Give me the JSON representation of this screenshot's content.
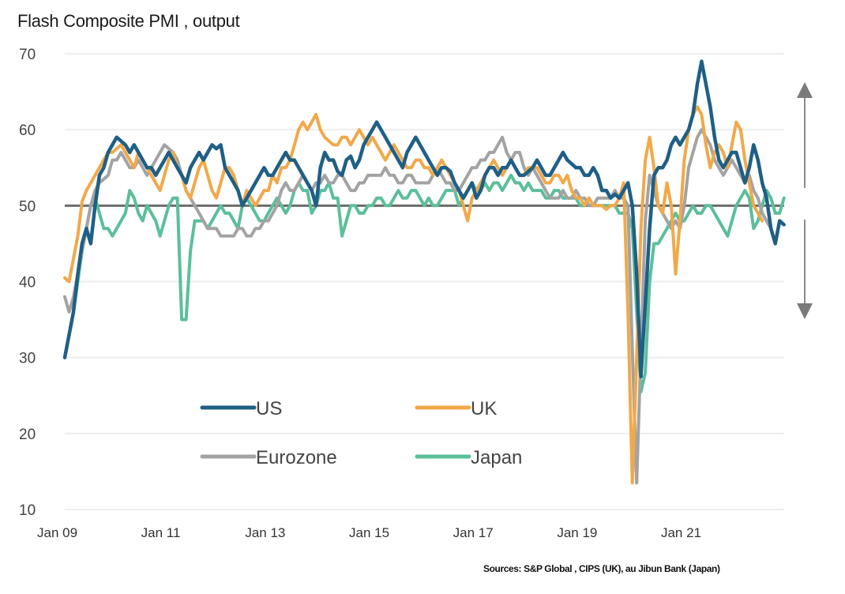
{
  "chart_data": {
    "type": "line",
    "title": "Flash Composite PMI , output",
    "source": "Sources: S&P Global , CIPS (UK), au Jibun Bank (Japan)",
    "xlabel": "",
    "ylabel": "",
    "ylim": [
      10,
      70
    ],
    "yticks": [
      10,
      20,
      30,
      40,
      50,
      60,
      70
    ],
    "xticks": [
      "Jan 09",
      "Jan 11",
      "Jan 13",
      "Jan 15",
      "Jan 17",
      "Jan 19",
      "Jan 21"
    ],
    "x_start": "Jan 09",
    "x_frequency": "monthly",
    "reference_line": 50,
    "grid": true,
    "legend_position": "lower-center",
    "annotation": "double-headed vertical arrow (expansion / contraction) at right",
    "series": [
      {
        "name": "US",
        "color": "#1f5f86",
        "values": [
          30,
          33,
          36,
          41,
          45,
          47,
          45,
          50,
          54,
          55,
          57,
          58,
          59,
          58.5,
          58,
          57,
          58,
          57,
          56,
          55,
          55,
          54,
          55,
          56,
          57,
          56,
          55,
          54,
          53,
          55,
          56,
          57,
          56,
          57,
          58,
          57.5,
          58,
          55,
          54,
          53,
          52,
          50,
          51,
          52,
          53,
          54,
          55,
          54,
          54,
          55,
          56,
          57,
          56,
          56,
          55,
          54,
          53,
          52,
          50,
          55,
          57,
          56,
          56,
          54.5,
          54,
          56,
          56.5,
          55,
          56,
          58,
          59,
          60,
          61,
          60,
          59,
          58,
          57,
          56,
          55,
          57,
          58,
          59,
          58,
          57,
          56,
          55,
          54,
          55,
          55,
          54.5,
          53,
          52,
          51,
          52,
          53,
          51,
          52,
          54,
          55,
          55,
          54,
          55,
          55,
          56,
          55,
          54,
          54,
          54.5,
          55,
          56,
          55,
          54,
          54,
          55,
          56,
          57,
          56,
          55.5,
          55,
          55,
          54,
          54,
          55,
          54,
          52,
          52,
          51,
          51.5,
          51,
          52,
          53,
          50,
          41,
          27.5,
          37,
          47,
          54,
          55,
          55,
          56,
          58,
          59,
          58,
          59,
          60,
          62,
          66,
          69,
          66,
          63,
          59,
          56,
          55,
          56,
          57,
          57,
          55,
          53,
          55,
          58,
          56,
          53,
          51,
          47,
          45,
          48,
          47.5
        ]
      },
      {
        "name": "UK",
        "color": "#f0a94a",
        "values": [
          40.5,
          40,
          43,
          46,
          50.5,
          52,
          53,
          54,
          55,
          56,
          57,
          57,
          57.5,
          58,
          57,
          56,
          55,
          57,
          56,
          55,
          54,
          53,
          52,
          54,
          56,
          57,
          55,
          54,
          52,
          51,
          53,
          55,
          56,
          54,
          52,
          51,
          53,
          55,
          55,
          54,
          52,
          50,
          52,
          51,
          50,
          51,
          52,
          52,
          54,
          53,
          55,
          55,
          56,
          58,
          60,
          61,
          60,
          61,
          62,
          60,
          59,
          58.5,
          58,
          58,
          59,
          59,
          58,
          59,
          60,
          59,
          58,
          59,
          58,
          57,
          56,
          57,
          58,
          57,
          56,
          55,
          55,
          56,
          56,
          55,
          55,
          54,
          55,
          56,
          55,
          54,
          53,
          52,
          50,
          48,
          51,
          52,
          53,
          54,
          55,
          56,
          55,
          54,
          55,
          56,
          55,
          54,
          54,
          55,
          55,
          55,
          54,
          53,
          53,
          54,
          54,
          53,
          54,
          52,
          51,
          51,
          50,
          51,
          50,
          50,
          50,
          49.5,
          50,
          50,
          51,
          53,
          36,
          13.5,
          30,
          47,
          56,
          59,
          55,
          50,
          49,
          53,
          50,
          41,
          48,
          56,
          60,
          62,
          63,
          62,
          58,
          55,
          57,
          58,
          57,
          55,
          58,
          61,
          60,
          56,
          53,
          50,
          49,
          48
        ]
      },
      {
        "name": "Eurozone",
        "color": "#a3a3a3",
        "values": [
          38,
          36,
          38,
          41,
          44,
          47,
          50,
          52,
          53,
          53.5,
          54,
          56,
          56,
          57,
          56,
          55,
          55,
          56,
          55,
          54,
          55,
          56,
          57,
          58,
          57.5,
          57,
          56,
          54,
          52,
          51,
          50,
          49,
          48,
          47,
          47,
          47,
          46,
          46,
          46,
          46,
          47,
          47,
          46,
          46,
          47,
          47,
          48,
          48,
          49,
          50,
          52,
          53,
          52,
          52,
          53,
          54,
          53,
          52,
          53,
          53,
          54,
          53,
          53,
          54,
          54,
          53,
          52,
          52,
          53,
          53,
          54,
          54,
          54,
          54,
          55,
          54,
          54,
          53,
          53,
          54,
          54,
          53,
          53,
          53,
          53,
          54,
          55,
          54,
          53,
          53,
          52,
          52,
          53,
          54,
          55,
          55,
          56,
          56,
          57,
          57,
          58,
          59,
          57,
          56,
          57,
          57,
          55,
          54,
          55,
          54,
          53,
          52,
          51,
          51,
          51,
          52,
          51,
          51,
          52,
          51,
          51,
          50,
          50,
          51,
          51,
          51,
          51,
          52,
          51,
          51,
          50,
          31,
          13.5,
          31,
          48,
          54,
          52,
          50,
          49,
          48,
          47,
          48,
          47,
          50,
          55,
          57,
          59,
          60,
          59,
          58,
          56,
          55,
          54,
          55,
          56,
          55,
          54,
          53,
          54,
          52,
          51,
          49,
          48,
          47
        ]
      },
      {
        "name": "Japan",
        "color": "#5bbf9a",
        "values": [
          30,
          33,
          36,
          40,
          44,
          47,
          50,
          51,
          49,
          47,
          47,
          46,
          47,
          48,
          49,
          52,
          51,
          49,
          48,
          50,
          49,
          48,
          46,
          48,
          50,
          51,
          51,
          35,
          35,
          44,
          48,
          48,
          48,
          47,
          48,
          49,
          50,
          49,
          49,
          48,
          47,
          50,
          51,
          50,
          49,
          48,
          48,
          49,
          50,
          51,
          50,
          49,
          50,
          52,
          53,
          52,
          52,
          49,
          50,
          52,
          52,
          53,
          51,
          51,
          46,
          48,
          50,
          50,
          49,
          49,
          50,
          50,
          51,
          51,
          50,
          50,
          51,
          52,
          51,
          51,
          52,
          52,
          51,
          50,
          51,
          50,
          50,
          51,
          52,
          52,
          52,
          50,
          51,
          52,
          53,
          52,
          52,
          53,
          52,
          53,
          53,
          52,
          53,
          54,
          53,
          53,
          52,
          53,
          52,
          52,
          52,
          51,
          51,
          52,
          52,
          51,
          51,
          51,
          51,
          50,
          50,
          51,
          50,
          50,
          50,
          50,
          50,
          50,
          49,
          49,
          49,
          47,
          36,
          25.5,
          28,
          40,
          45,
          45,
          46,
          47,
          48,
          49,
          48,
          48,
          49,
          50,
          49,
          49,
          50,
          50,
          49,
          48,
          47,
          46,
          48,
          50,
          51,
          52,
          51,
          47,
          48,
          50,
          52,
          51,
          49,
          49,
          51
        ]
      }
    ],
    "legend": [
      "US",
      "UK",
      "Eurozone",
      "Japan"
    ]
  }
}
